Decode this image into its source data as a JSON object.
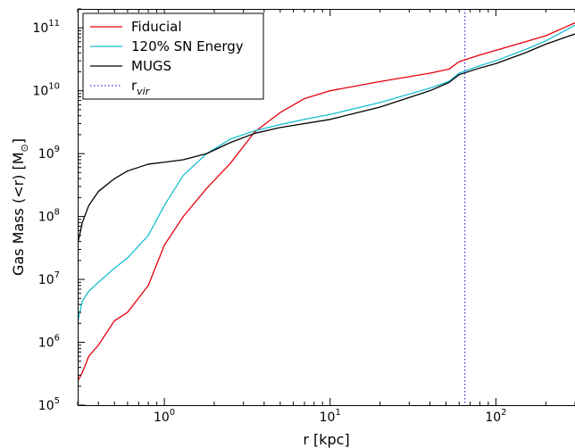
{
  "chart_data": {
    "type": "line",
    "xlabel": "r [kpc]",
    "ylabel": "Gas Mass (<r) [M",
    "ylabel_sub": "⊙",
    "ylabel_close": "]",
    "xscale": "log",
    "yscale": "log",
    "xlim": [
      0.3,
      300
    ],
    "ylim": [
      100000,
      200000000000
    ],
    "xticks": [
      {
        "value": 1,
        "base": "10",
        "exp": "0"
      },
      {
        "value": 10,
        "base": "10",
        "exp": "1"
      },
      {
        "value": 100,
        "base": "10",
        "exp": "2"
      }
    ],
    "yticks": [
      {
        "value": 100000,
        "base": "10",
        "exp": "5"
      },
      {
        "value": 1000000,
        "base": "10",
        "exp": "6"
      },
      {
        "value": 10000000,
        "base": "10",
        "exp": "7"
      },
      {
        "value": 100000000,
        "base": "10",
        "exp": "8"
      },
      {
        "value": 1000000000,
        "base": "10",
        "exp": "9"
      },
      {
        "value": 10000000000,
        "base": "10",
        "exp": "10"
      },
      {
        "value": 100000000000,
        "base": "10",
        "exp": "11"
      }
    ],
    "legend_position": "top-left",
    "series": [
      {
        "name": "Fiducial",
        "color": "#e8000b",
        "style": "solid",
        "x": [
          0.3,
          0.32,
          0.35,
          0.4,
          0.5,
          0.6,
          0.8,
          1.0,
          1.3,
          1.8,
          2.5,
          3.5,
          5,
          7,
          10,
          20,
          40,
          52,
          60,
          80,
          100,
          150,
          200,
          300
        ],
        "y": [
          240000,
          330000,
          600000,
          900000,
          2200000,
          3000000,
          8000000,
          35000000,
          100000000,
          280000000,
          700000000,
          2200000000,
          4500000000,
          7500000000,
          10000000000,
          14000000000,
          19000000000,
          22000000000,
          29000000000,
          37000000000,
          44000000000,
          60000000000,
          75000000000,
          120000000000
        ]
      },
      {
        "name": "120% SN Energy",
        "color": "#17becf",
        "style": "solid",
        "x": [
          0.3,
          0.32,
          0.35,
          0.4,
          0.5,
          0.6,
          0.8,
          1.0,
          1.3,
          1.8,
          2.5,
          3.5,
          5,
          7,
          10,
          20,
          40,
          52,
          60,
          80,
          100,
          150,
          200,
          300
        ],
        "y": [
          2100000,
          4500000,
          6500000,
          9000000,
          15000000,
          22000000,
          50000000,
          150000000,
          450000000,
          1000000000,
          1700000000,
          2300000000,
          2900000000,
          3500000000,
          4200000000,
          6500000000,
          11000000000,
          14000000000,
          19000000000,
          25000000000,
          30000000000,
          45000000000,
          62000000000,
          110000000000
        ]
      },
      {
        "name": "MUGS",
        "color": "#000000",
        "style": "solid",
        "x": [
          0.3,
          0.32,
          0.35,
          0.4,
          0.5,
          0.6,
          0.8,
          1.0,
          1.3,
          1.8,
          2.5,
          3.5,
          5,
          7,
          10,
          20,
          40,
          52,
          60,
          80,
          100,
          150,
          200,
          300
        ],
        "y": [
          37000000,
          80000000,
          150000000,
          250000000,
          400000000,
          530000000,
          680000000,
          730000000,
          800000000,
          1000000000,
          1500000000,
          2100000000,
          2600000000,
          3000000000,
          3500000000,
          5500000000,
          10000000000,
          13500000000,
          18000000000,
          23000000000,
          27000000000,
          40000000000,
          55000000000,
          80000000000
        ]
      }
    ],
    "vlines": [
      {
        "name": "r",
        "name_sub": "vir",
        "x": 65,
        "color": "#3333dd",
        "style": "dotted"
      }
    ],
    "grid": false
  }
}
